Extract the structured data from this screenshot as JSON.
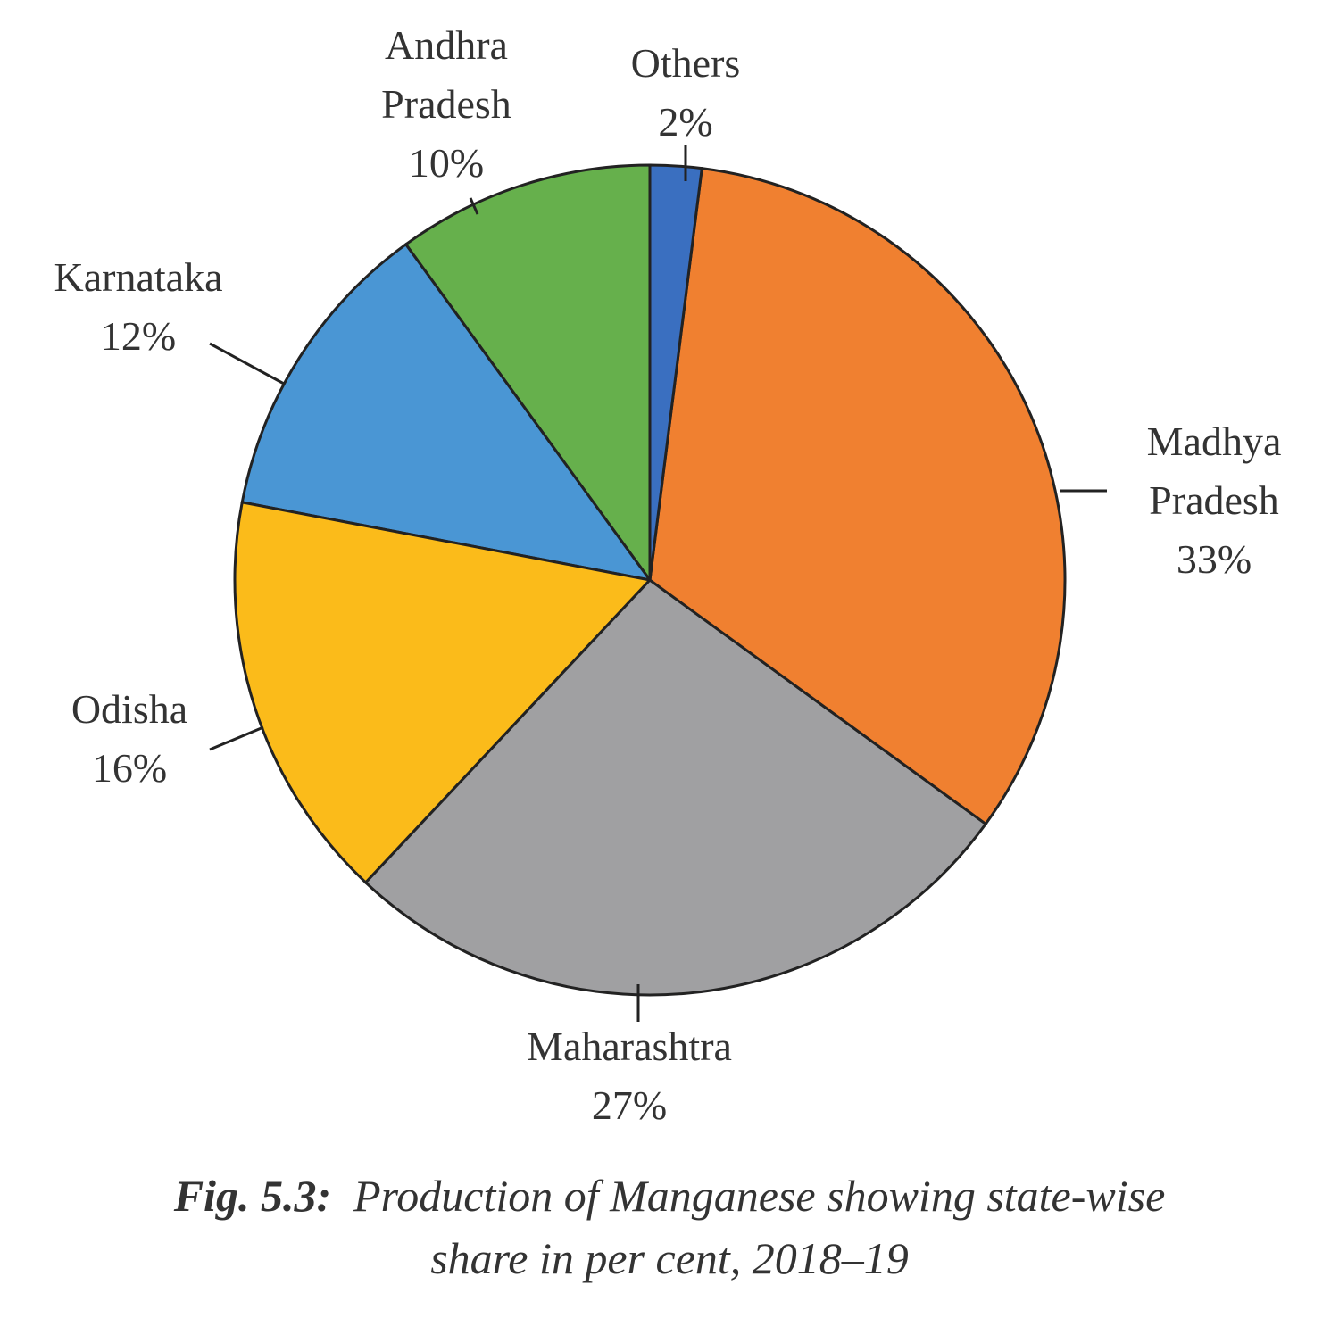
{
  "chart_data": {
    "type": "pie",
    "caption_label": "Fig. 5.3:",
    "title": "Production of Manganese showing state-wise share in per cent, 2018–19",
    "categories": [
      "Others",
      "Madhya Pradesh",
      "Maharashtra",
      "Odisha",
      "Karnataka",
      "Andhra Pradesh"
    ],
    "values": [
      2,
      33,
      27,
      16,
      12,
      10
    ],
    "value_labels": [
      "2%",
      "33%",
      "27%",
      "16%",
      "12%",
      "10%"
    ],
    "colors": [
      "#3a6fc0",
      "#f08030",
      "#a0a0a2",
      "#fbbb1a",
      "#4a96d4",
      "#66b04c"
    ]
  }
}
